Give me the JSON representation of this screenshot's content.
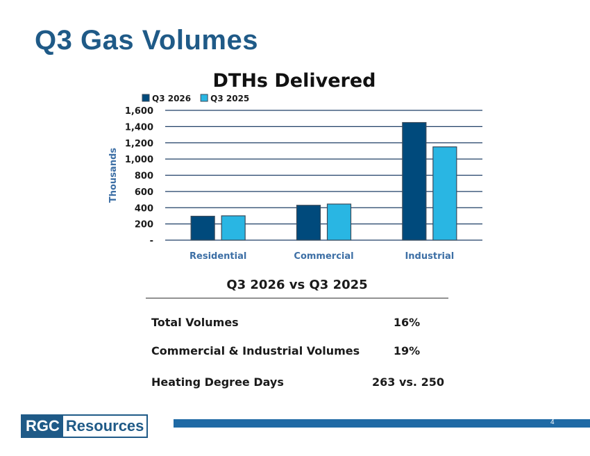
{
  "slide": {
    "title": "Q3 Gas Volumes",
    "page_number": "4"
  },
  "chart_data": {
    "type": "bar",
    "title": "DTHs Delivered",
    "ylabel": "Thousands",
    "xlabel": "",
    "categories": [
      "Residential",
      "Commercial",
      "Industrial"
    ],
    "series": [
      {
        "name": "Q3 2026",
        "values": [
          295,
          430,
          1450
        ],
        "color": "#004a7c"
      },
      {
        "name": "Q3 2025",
        "values": [
          300,
          445,
          1150
        ],
        "color": "#29b6e3"
      }
    ],
    "ylim": [
      0,
      1600
    ],
    "yticks": [
      0,
      200,
      400,
      600,
      800,
      1000,
      1200,
      1400,
      1600
    ],
    "ytick_labels": [
      "-",
      "200",
      "400",
      "600",
      "800",
      "1,000",
      "1,200",
      "1,400",
      "1,600"
    ],
    "grid": true,
    "legend_position": "top-left"
  },
  "summary": {
    "title": "Q3 2026 vs Q3 2025",
    "rows": [
      {
        "label": "Total Volumes",
        "value": "16%"
      },
      {
        "label": "Commercial & Industrial Volumes",
        "value": "19%"
      },
      {
        "label": "Heating Degree Days",
        "value": "263 vs. 250"
      }
    ]
  },
  "logo": {
    "part1": "RGC",
    "part2": "Resources"
  },
  "colors": {
    "title": "#1f5a87",
    "grid": "#1f3f66",
    "bar_outline": "#3a4a5a",
    "category_label": "#3d6fa5",
    "footer": "#1f6aa5"
  }
}
